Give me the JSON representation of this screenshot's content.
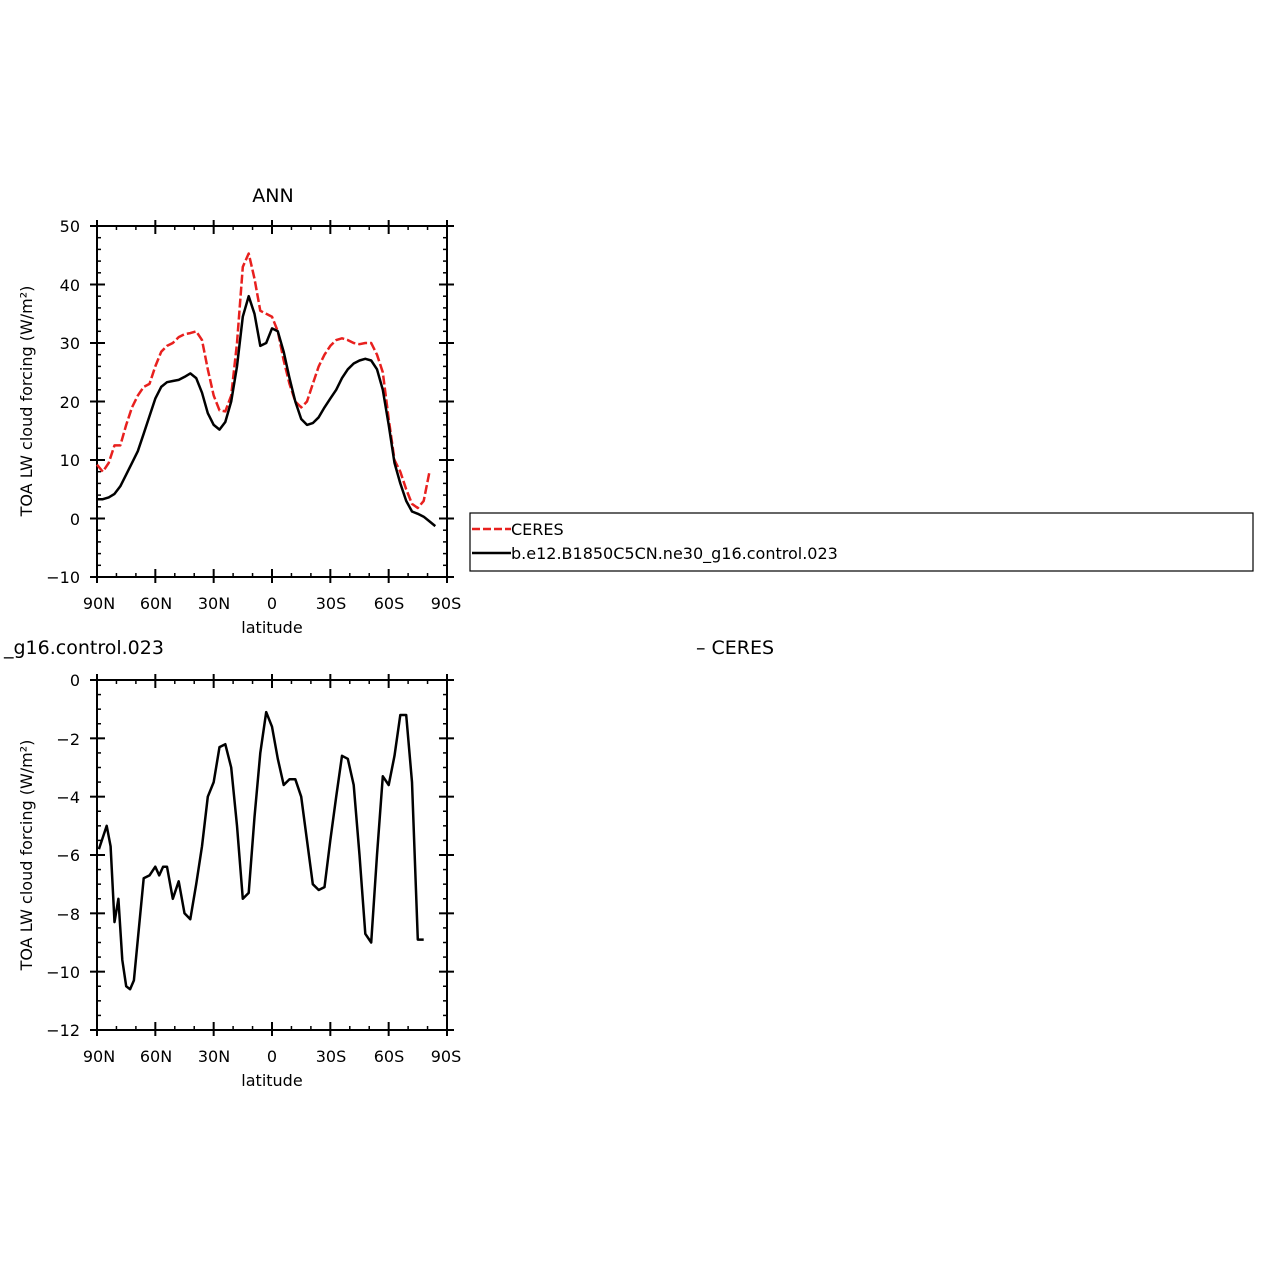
{
  "figure": {
    "top_title": "ANN",
    "bottom_title_left": "_g16.control.023",
    "bottom_title_right": "–  CERES"
  },
  "legend": {
    "placement": "right of top panel",
    "items": [
      {
        "label": "CERES",
        "color": "#e8201e",
        "style": "dashed"
      },
      {
        "label": "b.e12.B1850C5CN.ne30_g16.control.023",
        "color": "#000000",
        "style": "solid"
      }
    ]
  },
  "chart_data": [
    {
      "type": "line",
      "title": "ANN",
      "xlabel": "latitude",
      "ylabel": "TOA LW cloud forcing (W/m²)",
      "xlim": [
        90,
        -90
      ],
      "ylim": [
        -10,
        50
      ],
      "x_ticks": [
        90,
        60,
        30,
        0,
        -30,
        -60,
        -90
      ],
      "x_tick_labels": [
        "90N",
        "60N",
        "30N",
        "0",
        "30S",
        "60S",
        "90S"
      ],
      "y_ticks": [
        -10,
        0,
        10,
        20,
        30,
        40,
        50
      ],
      "y_tick_labels": [
        "−10",
        "0",
        "10",
        "20",
        "30",
        "40",
        "50"
      ],
      "grid": false,
      "series": [
        {
          "name": "CERES",
          "color": "#e8201e",
          "dash": true,
          "x": [
            90,
            87,
            84,
            81,
            78,
            75,
            72,
            69,
            66,
            63,
            60,
            57,
            54,
            51,
            48,
            45,
            42,
            39,
            36,
            33,
            30,
            27,
            24,
            21,
            18,
            15,
            12,
            9,
            6,
            3,
            0,
            -3,
            -6,
            -9,
            -12,
            -15,
            -18,
            -21,
            -24,
            -27,
            -30,
            -33,
            -36,
            -39,
            -42,
            -45,
            -48,
            -51,
            -54,
            -57,
            -60,
            -63,
            -66,
            -69,
            -72,
            -75,
            -78,
            -81,
            -84,
            -87,
            -90
          ],
          "y": [
            9.2,
            8.0,
            9.5,
            12.5,
            12.5,
            16.0,
            19.0,
            21.0,
            22.5,
            23.0,
            26.0,
            28.5,
            29.5,
            30.0,
            31.0,
            31.5,
            31.7,
            32.0,
            30.5,
            25.5,
            21.0,
            18.5,
            18.3,
            21.0,
            30.0,
            43.0,
            45.3,
            41.0,
            35.5,
            35.0,
            34.5,
            32.0,
            27.0,
            23.0,
            20.0,
            19.0,
            20.0,
            23.0,
            26.0,
            28.0,
            29.5,
            30.5,
            30.8,
            30.5,
            30.0,
            29.8,
            30.0,
            30.0,
            28.0,
            25.0,
            17.0,
            10.0,
            8.0,
            5.0,
            2.5,
            1.8,
            3.0,
            8.0,
            null,
            null,
            null
          ]
        },
        {
          "name": "b.e12.B1850C5CN.ne30_g16.control.023",
          "color": "#000000",
          "dash": false,
          "x": [
            90,
            87,
            84,
            81,
            78,
            75,
            72,
            69,
            66,
            63,
            60,
            57,
            54,
            51,
            48,
            45,
            42,
            39,
            36,
            33,
            30,
            27,
            24,
            21,
            18,
            15,
            12,
            9,
            6,
            3,
            0,
            -3,
            -6,
            -9,
            -12,
            -15,
            -18,
            -21,
            -24,
            -27,
            -30,
            -33,
            -36,
            -39,
            -42,
            -45,
            -48,
            -51,
            -54,
            -57,
            -60,
            -63,
            -66,
            -69,
            -72,
            -75,
            -78,
            -81,
            -84,
            -87,
            -90
          ],
          "y": [
            3.3,
            3.3,
            3.6,
            4.2,
            5.5,
            7.5,
            9.5,
            11.5,
            14.5,
            17.5,
            20.5,
            22.5,
            23.3,
            23.5,
            23.7,
            24.2,
            24.8,
            24.0,
            21.5,
            18.0,
            16.0,
            15.2,
            16.5,
            20.0,
            26.0,
            34.5,
            38.0,
            35.0,
            29.5,
            30.0,
            32.5,
            32.0,
            28.5,
            24.0,
            20.0,
            17.0,
            16.0,
            16.3,
            17.3,
            19.0,
            20.5,
            22.0,
            24.0,
            25.5,
            26.5,
            27.0,
            27.3,
            27.0,
            25.5,
            22.0,
            16.0,
            9.5,
            6.0,
            3.0,
            1.2,
            0.8,
            0.3,
            -0.5,
            -1.3,
            null,
            null
          ]
        }
      ]
    },
    {
      "type": "line",
      "title": "_g16.control.023 – CERES",
      "xlabel": "latitude",
      "ylabel": "TOA LW cloud forcing (W/m²)",
      "xlim": [
        90,
        -90
      ],
      "ylim": [
        -12,
        0
      ],
      "x_ticks": [
        90,
        60,
        30,
        0,
        -30,
        -60,
        -90
      ],
      "x_tick_labels": [
        "90N",
        "60N",
        "30N",
        "0",
        "30S",
        "60S",
        "90S"
      ],
      "y_ticks": [
        -12,
        -10,
        -8,
        -6,
        -4,
        -2,
        0
      ],
      "y_tick_labels": [
        "−12",
        "−10",
        "−8",
        "−6",
        "−4",
        "−2",
        "0"
      ],
      "grid": false,
      "series": [
        {
          "color": "#000000",
          "dash": false,
          "x": [
            89,
            87,
            85,
            83,
            81,
            79,
            77,
            75,
            73,
            71,
            69,
            66,
            63,
            60,
            58,
            56,
            54,
            51,
            48,
            45,
            42,
            39,
            36,
            33,
            30,
            27,
            24,
            21,
            18,
            15,
            12,
            9,
            6,
            3,
            0,
            -3,
            -6,
            -9,
            -12,
            -15,
            -18,
            -21,
            -24,
            -27,
            -30,
            -33,
            -36,
            -39,
            -42,
            -45,
            -48,
            -51,
            -54,
            -57,
            -60,
            -63,
            -66,
            -69,
            -72,
            -75,
            -78,
            -81,
            -84,
            -87,
            -90
          ],
          "y": [
            -5.8,
            -5.4,
            -5.0,
            -5.7,
            -8.3,
            -7.5,
            -9.6,
            -10.5,
            -10.6,
            -10.3,
            -8.9,
            -6.8,
            -6.7,
            -6.4,
            -6.7,
            -6.4,
            -6.4,
            -7.5,
            -6.9,
            -8.0,
            -8.2,
            -7.0,
            -5.7,
            -4.0,
            -3.5,
            -2.3,
            -2.2,
            -3.0,
            -5.0,
            -7.5,
            -7.3,
            -4.7,
            -2.5,
            -1.1,
            -1.6,
            -2.7,
            -3.6,
            -3.4,
            -3.4,
            -4.0,
            -5.5,
            -7.0,
            -7.2,
            -7.1,
            -5.5,
            -4.0,
            -2.6,
            -2.7,
            -3.6,
            -6.0,
            -8.7,
            -9.0,
            -6.0,
            -3.3,
            -3.6,
            -2.6,
            -1.2,
            -1.2,
            -3.5,
            -8.9,
            -8.9,
            null,
            null,
            null,
            null
          ]
        }
      ]
    }
  ]
}
